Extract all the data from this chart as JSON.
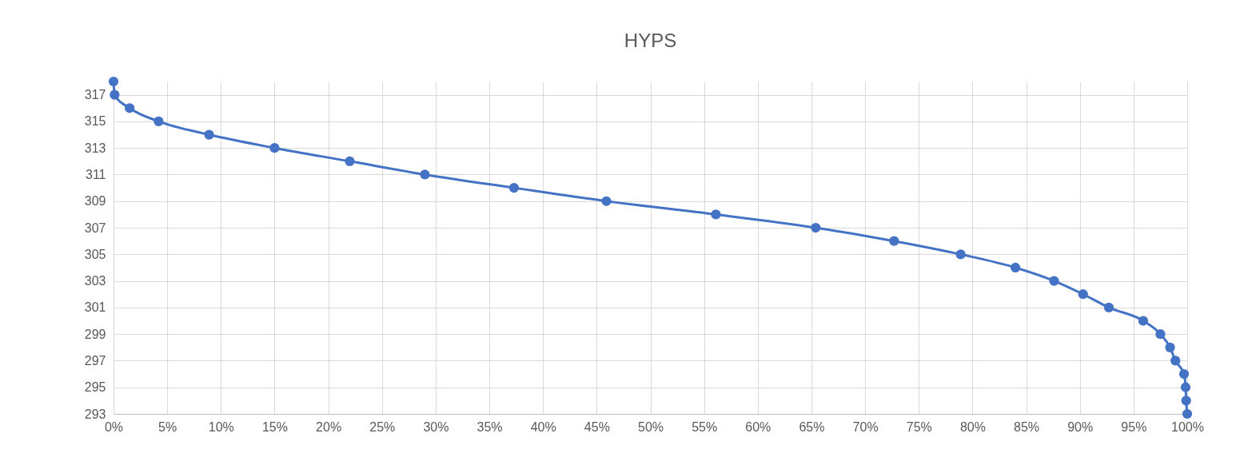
{
  "chart_data": {
    "type": "line",
    "title": "HYPS",
    "x": [
      0,
      0.1,
      1.5,
      4.2,
      8.9,
      15,
      22,
      29,
      37.3,
      45.9,
      56.1,
      65.4,
      72.7,
      78.9,
      84,
      87.6,
      90.3,
      92.7,
      95.9,
      97.5,
      98.4,
      98.9,
      99.7,
      99.85,
      99.9,
      100
    ],
    "series": [
      {
        "color": "#4472c4",
        "values": [
          318,
          317,
          316,
          315,
          314,
          313,
          312,
          311,
          310,
          309,
          308,
          307,
          306,
          305,
          304,
          303,
          302,
          301,
          300,
          299,
          298,
          297,
          296,
          295,
          294,
          293
        ]
      }
    ],
    "xlim": [
      0,
      100
    ],
    "xticks": [
      {
        "value": 0,
        "label": "0%"
      },
      {
        "value": 5,
        "label": "5%"
      },
      {
        "value": 10,
        "label": "10%"
      },
      {
        "value": 15,
        "label": "15%"
      },
      {
        "value": 20,
        "label": "20%"
      },
      {
        "value": 25,
        "label": "25%"
      },
      {
        "value": 30,
        "label": "30%"
      },
      {
        "value": 35,
        "label": "35%"
      },
      {
        "value": 40,
        "label": "40%"
      },
      {
        "value": 45,
        "label": "45%"
      },
      {
        "value": 50,
        "label": "50%"
      },
      {
        "value": 55,
        "label": "55%"
      },
      {
        "value": 60,
        "label": "60%"
      },
      {
        "value": 65,
        "label": "65%"
      },
      {
        "value": 70,
        "label": "70%"
      },
      {
        "value": 75,
        "label": "75%"
      },
      {
        "value": 80,
        "label": "80%"
      },
      {
        "value": 85,
        "label": "85%"
      },
      {
        "value": 90,
        "label": "90%"
      },
      {
        "value": 95,
        "label": "95%"
      },
      {
        "value": 100,
        "label": "100%"
      }
    ],
    "ylim": [
      293,
      318
    ],
    "yticks": [
      293,
      295,
      297,
      299,
      301,
      303,
      305,
      307,
      309,
      311,
      313,
      315,
      317
    ],
    "grid": true,
    "marker": "circle",
    "line_style": "solid"
  }
}
